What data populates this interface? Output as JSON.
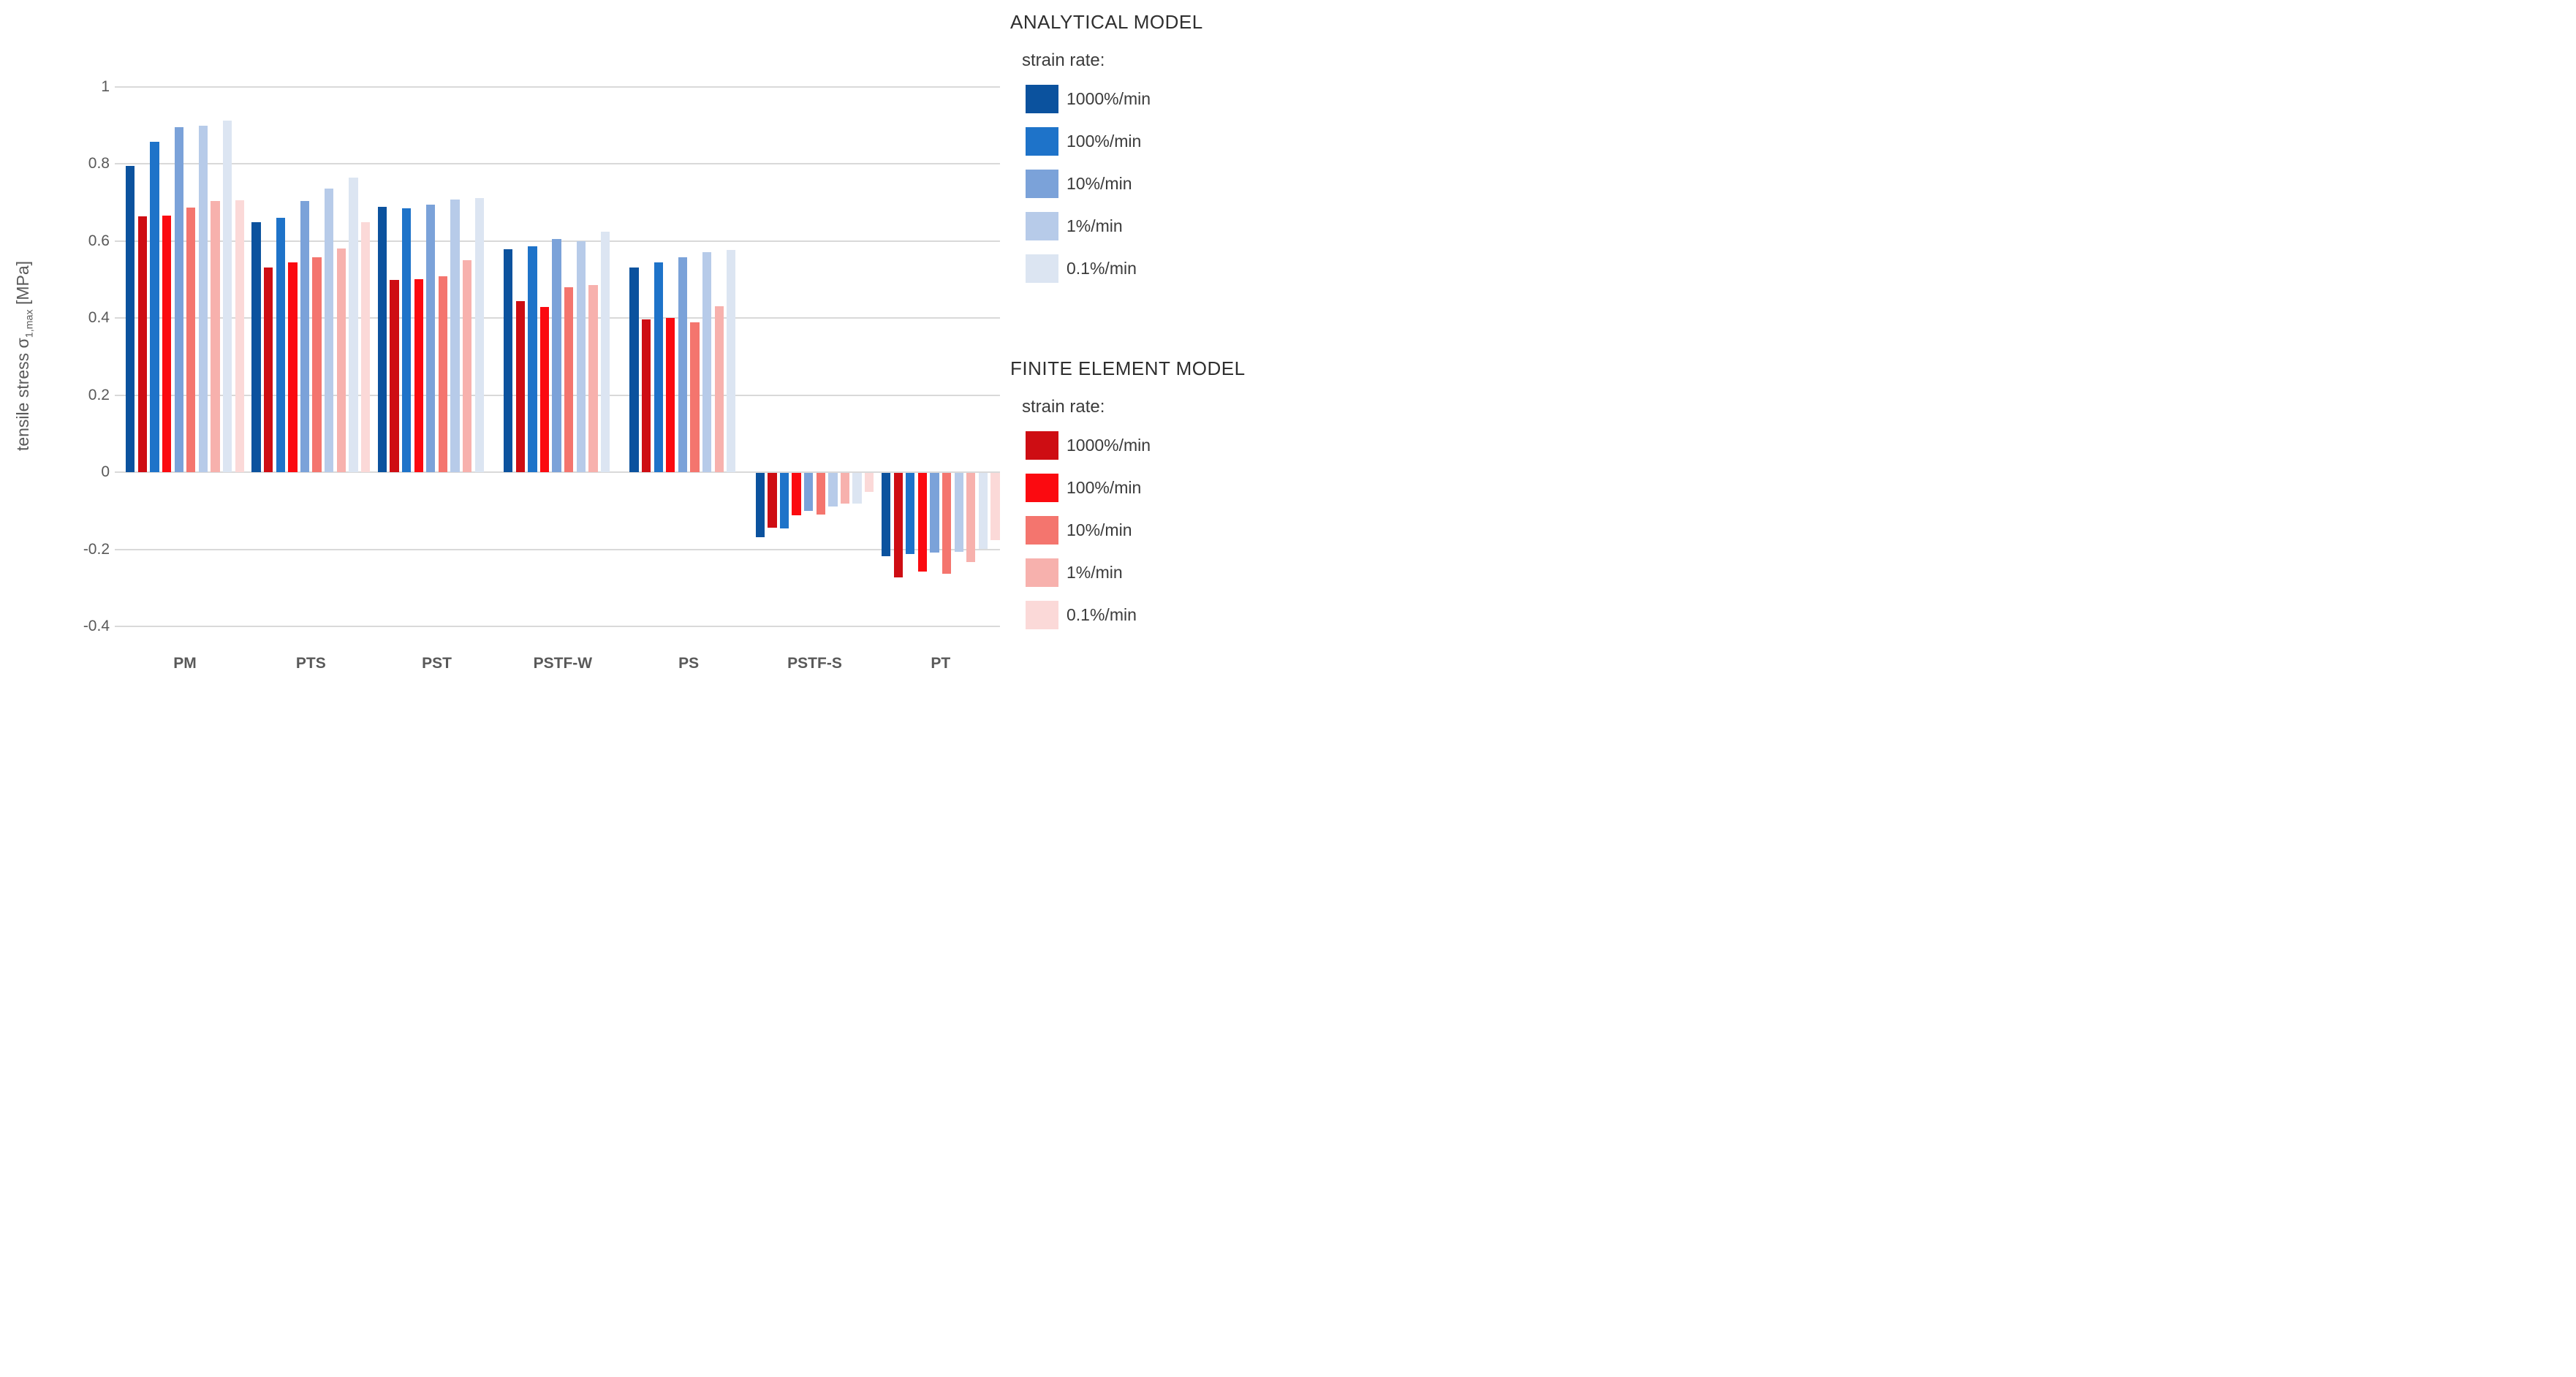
{
  "page": {
    "background": "#ffffff"
  },
  "y_axis": {
    "title_prefix": "tensile stress σ",
    "title_sub": "1,max",
    "title_suffix": " [MPa]",
    "ticks": [
      "1",
      "0.8",
      "0.6",
      "0.4",
      "0.2",
      "0",
      "-0.2",
      "-0.4"
    ],
    "range": [
      -0.4,
      1.0
    ],
    "gridline_color": "#d9d9d9",
    "text_color": "#595959"
  },
  "models": [
    {
      "name": "ANALYTICAL MODEL",
      "subtitle": "strain rate:",
      "colors": [
        "#0b529e",
        "#1e73c9",
        "#7ba2d9",
        "#b7cbe9",
        "#dce5f2"
      ]
    },
    {
      "name": "FINITE ELEMENT MODEL",
      "subtitle": "strain rate:",
      "colors": [
        "#ce0d13",
        "#fb0a10",
        "#f4756e",
        "#f7b1ad",
        "#fbd9d8"
      ]
    }
  ],
  "chart_data": {
    "type": "bar",
    "title": "",
    "xlabel": "",
    "ylabel": "tensile stress σ1,max [MPa]",
    "ylim": [
      -0.4,
      1.0
    ],
    "grid": true,
    "legend_position": "right",
    "categories": [
      "PM",
      "PTS",
      "PST",
      "PSTF-W",
      "PS",
      "PSTF-S",
      "PT"
    ],
    "strain_rates": [
      "1000%/min",
      "100%/min",
      "10%/min",
      "1%/min",
      "0.1%/min"
    ],
    "series": [
      {
        "model": "ANALYTICAL MODEL",
        "strain_rate": "1000%/min",
        "color": "#0b529e",
        "values": [
          0.794,
          0.648,
          0.688,
          0.579,
          0.531,
          -0.167,
          -0.216
        ]
      },
      {
        "model": "FINITE ELEMENT MODEL",
        "strain_rate": "1000%/min",
        "color": "#ce0d13",
        "values": [
          0.663,
          0.531,
          0.499,
          0.444,
          0.397,
          -0.142,
          -0.271
        ]
      },
      {
        "model": "ANALYTICAL MODEL",
        "strain_rate": "100%/min",
        "color": "#1e73c9",
        "values": [
          0.857,
          0.66,
          0.684,
          0.586,
          0.545,
          -0.144,
          -0.21
        ]
      },
      {
        "model": "FINITE ELEMENT MODEL",
        "strain_rate": "100%/min",
        "color": "#fb0a10",
        "values": [
          0.665,
          0.545,
          0.501,
          0.429,
          0.4,
          -0.11,
          -0.255
        ]
      },
      {
        "model": "ANALYTICAL MODEL",
        "strain_rate": "10%/min",
        "color": "#7ba2d9",
        "values": [
          0.895,
          0.703,
          0.694,
          0.604,
          0.557,
          -0.099,
          -0.207
        ]
      },
      {
        "model": "FINITE ELEMENT MODEL",
        "strain_rate": "10%/min",
        "color": "#f4756e",
        "values": [
          0.687,
          0.557,
          0.509,
          0.479,
          0.389,
          -0.108,
          -0.262
        ]
      },
      {
        "model": "ANALYTICAL MODEL",
        "strain_rate": "1%/min",
        "color": "#b7cbe9",
        "values": [
          0.898,
          0.736,
          0.708,
          0.6,
          0.57,
          -0.087,
          -0.205
        ]
      },
      {
        "model": "FINITE ELEMENT MODEL",
        "strain_rate": "1%/min",
        "color": "#f7b1ad",
        "values": [
          0.704,
          0.58,
          0.55,
          0.486,
          0.431,
          -0.079,
          -0.232
        ]
      },
      {
        "model": "ANALYTICAL MODEL",
        "strain_rate": "0.1%/min",
        "color": "#dce5f2",
        "values": [
          0.911,
          0.764,
          0.71,
          0.623,
          0.576,
          -0.079,
          -0.197
        ]
      },
      {
        "model": "FINITE ELEMENT MODEL",
        "strain_rate": "0.1%/min",
        "color": "#fbd9d8",
        "values": [
          0.706,
          0.649,
          null,
          null,
          null,
          -0.05,
          -0.174
        ]
      }
    ]
  }
}
